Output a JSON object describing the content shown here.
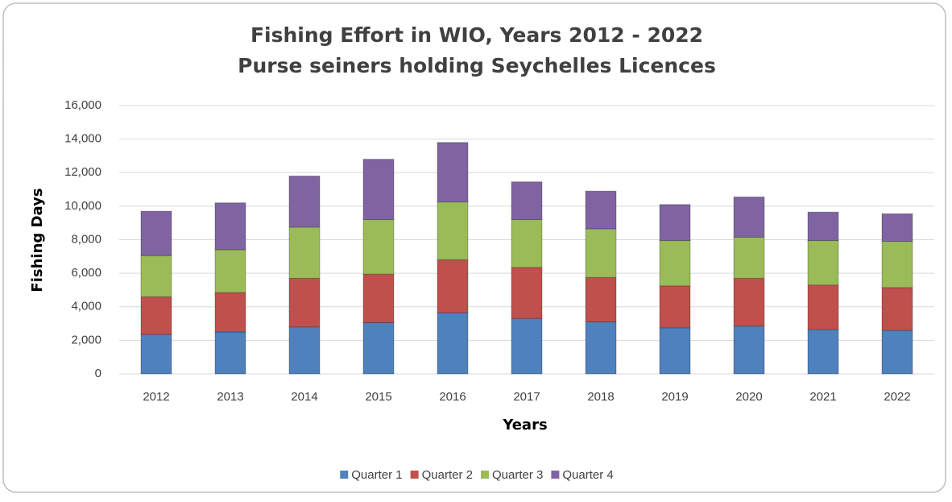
{
  "chart_data": {
    "type": "stacked_bar",
    "title": "Fishing Effort in WIO, Years 2012 - 2022",
    "subtitle": "Purse seiners holding Seychelles Licences",
    "x_label": "Years",
    "y_label": "Fishing Days",
    "categories": [
      "2012",
      "2013",
      "2014",
      "2015",
      "2016",
      "2017",
      "2018",
      "2019",
      "2020",
      "2021",
      "2022"
    ],
    "series": [
      {
        "name": "Quarter 1",
        "color": "#4f81bd",
        "values": [
          2350,
          2500,
          2800,
          3050,
          3650,
          3300,
          3100,
          2750,
          2850,
          2650,
          2600
        ]
      },
      {
        "name": "Quarter 2",
        "color": "#c0504d",
        "values": [
          2250,
          2350,
          2900,
          2900,
          3150,
          3050,
          2650,
          2500,
          2850,
          2650,
          2550
        ]
      },
      {
        "name": "Quarter 3",
        "color": "#9bbb59",
        "values": [
          2450,
          2550,
          3050,
          3250,
          3450,
          2850,
          2900,
          2700,
          2450,
          2650,
          2750
        ]
      },
      {
        "name": "Quarter 4",
        "color": "#8064a2",
        "values": [
          2650,
          2800,
          3050,
          3600,
          3550,
          2250,
          2250,
          2150,
          2400,
          1700,
          1650
        ]
      }
    ],
    "ylim": [
      0,
      16000
    ],
    "yticks": [
      0,
      {
        "value": 2000,
        "label": "2,000"
      },
      {
        "value": 4000,
        "label": "4,000"
      },
      {
        "value": 6000,
        "label": "6,000"
      },
      {
        "value": 8000,
        "label": "8,000"
      },
      {
        "value": 10000,
        "label": "10,000"
      },
      {
        "value": 12000,
        "label": "12,000"
      },
      {
        "value": 14000,
        "label": "14,000"
      },
      {
        "value": 16000,
        "label": "16,000"
      }
    ],
    "grid": true,
    "legend": "bottom"
  }
}
